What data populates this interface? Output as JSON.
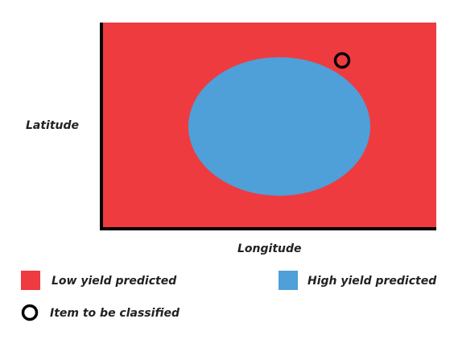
{
  "axes": {
    "y_label": "Latitude",
    "x_label": "Longitude"
  },
  "colors": {
    "low_region": "#ee3b40",
    "high_region": "#4f9fd8",
    "marker": "#000000",
    "axis": "#000000"
  },
  "legend": {
    "low": "Low yield predicted",
    "high": "High yield predicted",
    "item": "Item to be classified"
  }
}
